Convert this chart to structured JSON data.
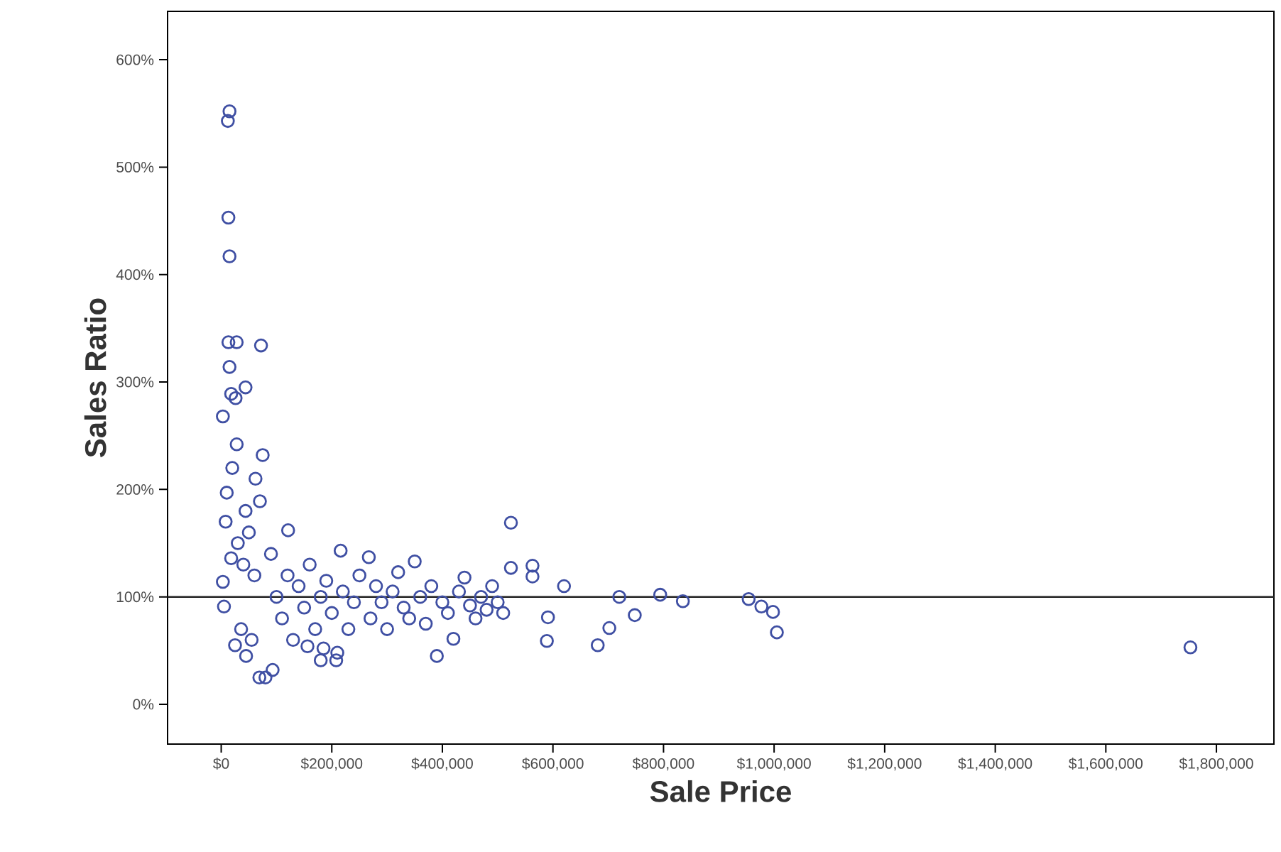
{
  "chart_data": {
    "type": "scatter",
    "xlabel": "Sale Price",
    "ylabel": "Sales Ratio",
    "xlim": [
      -97000,
      1904000
    ],
    "ylim": [
      -37,
      645
    ],
    "xticks": [
      {
        "value": 0,
        "label": "$0"
      },
      {
        "value": 200000,
        "label": "$200,000"
      },
      {
        "value": 400000,
        "label": "$400,000"
      },
      {
        "value": 600000,
        "label": "$600,000"
      },
      {
        "value": 800000,
        "label": "$800,000"
      },
      {
        "value": 1000000,
        "label": "$1,000,000"
      },
      {
        "value": 1200000,
        "label": "$1,200,000"
      },
      {
        "value": 1400000,
        "label": "$1,400,000"
      },
      {
        "value": 1600000,
        "label": "$1,600,000"
      },
      {
        "value": 1800000,
        "label": "$1,800,000"
      }
    ],
    "yticks": [
      {
        "value": 0,
        "label": "0%"
      },
      {
        "value": 100,
        "label": "100%"
      },
      {
        "value": 200,
        "label": "200%"
      },
      {
        "value": 300,
        "label": "300%"
      },
      {
        "value": 400,
        "label": "400%"
      },
      {
        "value": 500,
        "label": "500%"
      },
      {
        "value": 600,
        "label": "600%"
      }
    ],
    "marker": "circle",
    "color": "#3f4fa3",
    "ref_lines": [
      {
        "axis": "y",
        "value": 100,
        "color": "#222222"
      }
    ],
    "x": [
      15000,
      12000,
      13000,
      15000,
      13000,
      28000,
      72000,
      15000,
      18000,
      44000,
      3000,
      26000,
      75000,
      62000,
      28000,
      10000,
      44000,
      70000,
      121000,
      18000,
      3000,
      5000,
      36000,
      69000,
      80000,
      93000,
      30000,
      50000,
      20000,
      40000,
      60000,
      8000,
      55000,
      45000,
      25000,
      90000,
      100000,
      110000,
      120000,
      130000,
      140000,
      150000,
      160000,
      170000,
      180000,
      190000,
      200000,
      216000,
      220000,
      230000,
      240000,
      250000,
      267000,
      270000,
      280000,
      290000,
      300000,
      310000,
      320000,
      330000,
      340000,
      350000,
      360000,
      370000,
      380000,
      390000,
      400000,
      410000,
      420000,
      430000,
      440000,
      450000,
      460000,
      470000,
      480000,
      490000,
      500000,
      510000,
      208000,
      180000,
      156000,
      185000,
      210000,
      524000,
      524000,
      563000,
      563000,
      591000,
      589000,
      620000,
      681000,
      702000,
      720000,
      748000,
      794000,
      835000,
      954000,
      977000,
      998000,
      1005000,
      1753000
    ],
    "values": [
      552,
      543,
      453,
      417,
      337,
      337,
      334,
      314,
      289,
      295,
      268,
      285,
      232,
      210,
      242,
      197,
      180,
      189,
      162,
      136,
      114,
      91,
      70,
      25,
      25,
      32,
      150,
      160,
      220,
      130,
      120,
      170,
      60,
      45,
      55,
      140,
      100,
      80,
      120,
      60,
      110,
      90,
      130,
      70,
      100,
      115,
      85,
      143,
      105,
      70,
      95,
      120,
      137,
      80,
      110,
      95,
      70,
      105,
      123,
      90,
      80,
      133,
      100,
      75,
      110,
      45,
      95,
      85,
      61,
      105,
      118,
      92,
      80,
      100,
      88,
      110,
      95,
      85,
      41,
      41,
      54,
      52,
      48,
      169,
      127,
      129,
      119,
      81,
      59,
      110,
      55,
      71,
      100,
      83,
      102,
      96,
      98,
      91,
      86,
      67,
      53
    ]
  }
}
